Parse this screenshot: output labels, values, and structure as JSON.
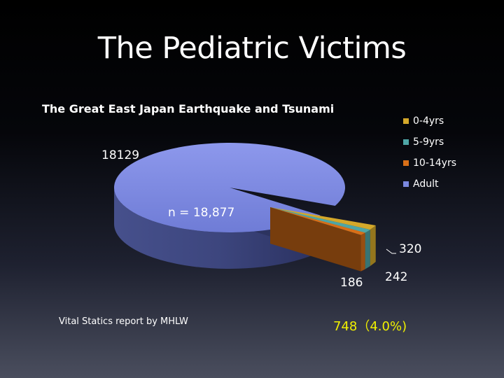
{
  "slide": {
    "title": "The Pediatric Victims",
    "source": "Vital Statics report by MHLW",
    "summary": "748（4.0%)"
  },
  "chart_data": {
    "type": "pie",
    "title": "The Great East Japan Earthquake and Tsunami",
    "annotation": "n = 18,877",
    "legend_position": "right",
    "categories": [
      "0-4yrs",
      "5-9yrs",
      "10-14yrs",
      "Adult"
    ],
    "legend_labels": [
      "0-4yrs",
      "5-9yrs",
      "10-14yrs",
      "Adult"
    ],
    "values": [
      320,
      242,
      186,
      18129
    ],
    "value_labels": [
      "320",
      "242",
      "186",
      "18129"
    ],
    "colors": [
      "#d4a82a",
      "#4ea6a6",
      "#d86f18",
      "#7b88de"
    ],
    "exploded": [
      "0-4yrs",
      "5-9yrs",
      "10-14yrs"
    ]
  }
}
